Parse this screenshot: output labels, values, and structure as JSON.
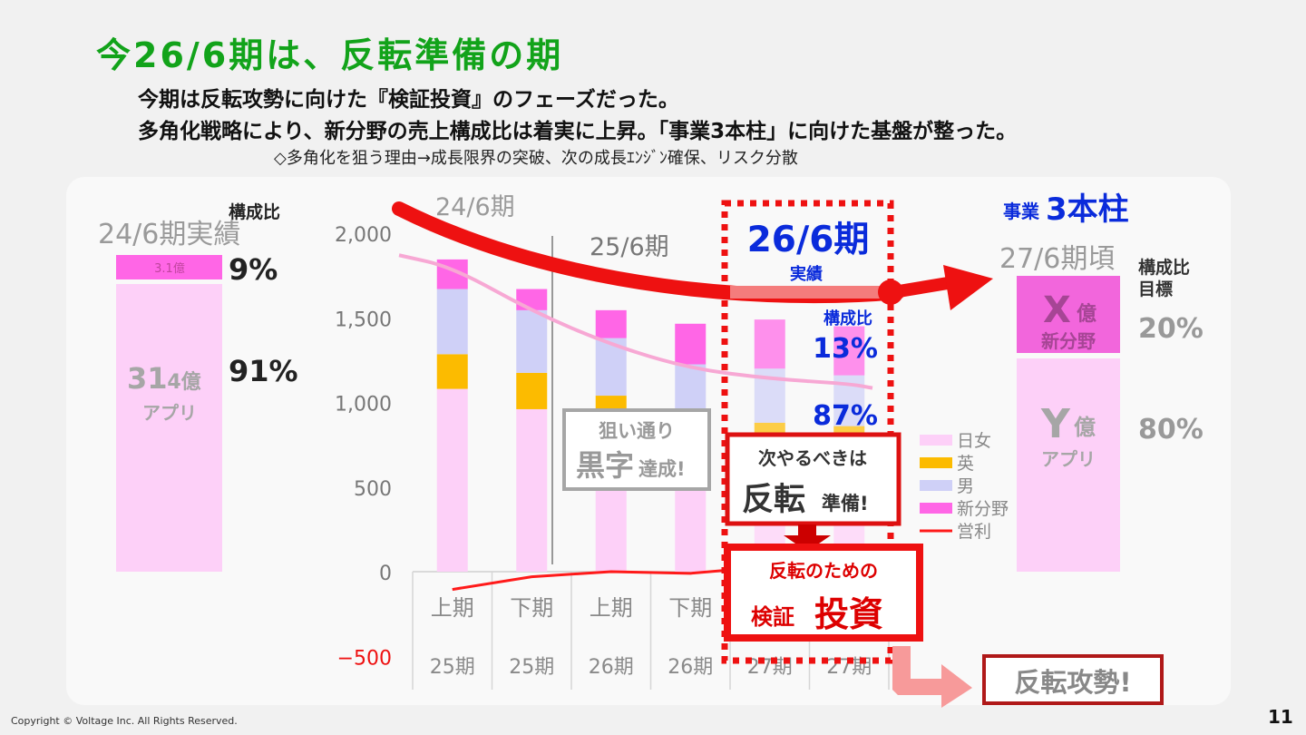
{
  "slide": {
    "title": "今26/6期は、反転準備の期",
    "subtitle_1": "今期は反転攻勢に向けた『検証投資』のフェーズだった。",
    "subtitle_2": "多角化戦略により、新分野の売上構成比は着実に上昇。「事業3本柱」に向けた基盤が整った。",
    "note": "◇多角化を狙う理由→成長限界の突破、次の成長ｴﾝｼﾞﾝ確保、リスク分散",
    "copyright": "Copyright © Voltage Inc.  All Rights Reserved.",
    "page_number": "11"
  },
  "left_block": {
    "ratio_header": "構成比",
    "period_label": "24/6期実績",
    "new_value_label": "3.1億",
    "new_ratio": "9%",
    "app_value_big": "31",
    "app_value_small": ".4億",
    "app_label": "アプリ",
    "app_ratio": "91%",
    "colors": {
      "new": "#ff66e6",
      "app": "#fdd0f8"
    }
  },
  "right_block": {
    "header_prefix": "事業",
    "header_main": "3本柱",
    "period_label": "27/6期頃",
    "ratio_header_1": "構成比",
    "ratio_header_2": "目標",
    "x_letter": "X",
    "x_unit": "億",
    "x_label": "新分野",
    "x_ratio": "20%",
    "y_letter": "Y",
    "y_unit": "億",
    "y_label": "アプリ",
    "y_ratio": "80%"
  },
  "callouts": {
    "period_24": "24/6期",
    "period_25": "25/6期",
    "period_26": "26/6期",
    "period_26_sub": "実績",
    "ratio_header": "構成比",
    "ratio_new": "13%",
    "ratio_app": "87%",
    "achieved_1": "狙い通り",
    "achieved_2a": "黒字",
    "achieved_2b": "達成!",
    "next_1": "次やるべきは",
    "next_2a": "反転",
    "next_2b": "準備!",
    "invest_1": "反転のための",
    "invest_2a": "検証",
    "invest_2b": "投資",
    "offensive": "反転攻勢!"
  },
  "chart_data": {
    "type": "bar",
    "stacked": true,
    "categories": [
      "上期",
      "下期",
      "上期",
      "下期",
      "上期",
      "下期"
    ],
    "category_groups": [
      "25期",
      "25期",
      "26期",
      "26期",
      "27期",
      "27期"
    ],
    "ylim": [
      -500,
      2000
    ],
    "yticks": [
      "2,000",
      "1,500",
      "1,000",
      "500",
      "0",
      "−500"
    ],
    "ytick_values": [
      2000,
      1500,
      1000,
      500,
      0,
      -500
    ],
    "series": [
      {
        "name": "日女",
        "color": "#fdd0f8",
        "values": [
          1080,
          960,
          840,
          800,
          780,
          770
        ]
      },
      {
        "name": "英",
        "color": "#fcbb00",
        "values": [
          205,
          215,
          200,
          0,
          100,
          90
        ]
      },
      {
        "name": "男",
        "color": "#cfd0f7",
        "values": [
          385,
          370,
          340,
          425,
          320,
          300
        ]
      },
      {
        "name": "新分野",
        "color": "#ff66e6",
        "values": [
          175,
          125,
          165,
          240,
          290,
          290
        ]
      }
    ],
    "line": {
      "name": "営利",
      "color": "#ff1a1a",
      "values": [
        -105,
        -30,
        0,
        -10,
        30,
        40
      ]
    },
    "trend_line": {
      "color": "#f7a8d4",
      "values": [
        1800,
        1540,
        1340,
        1200,
        1140,
        1110
      ]
    }
  }
}
